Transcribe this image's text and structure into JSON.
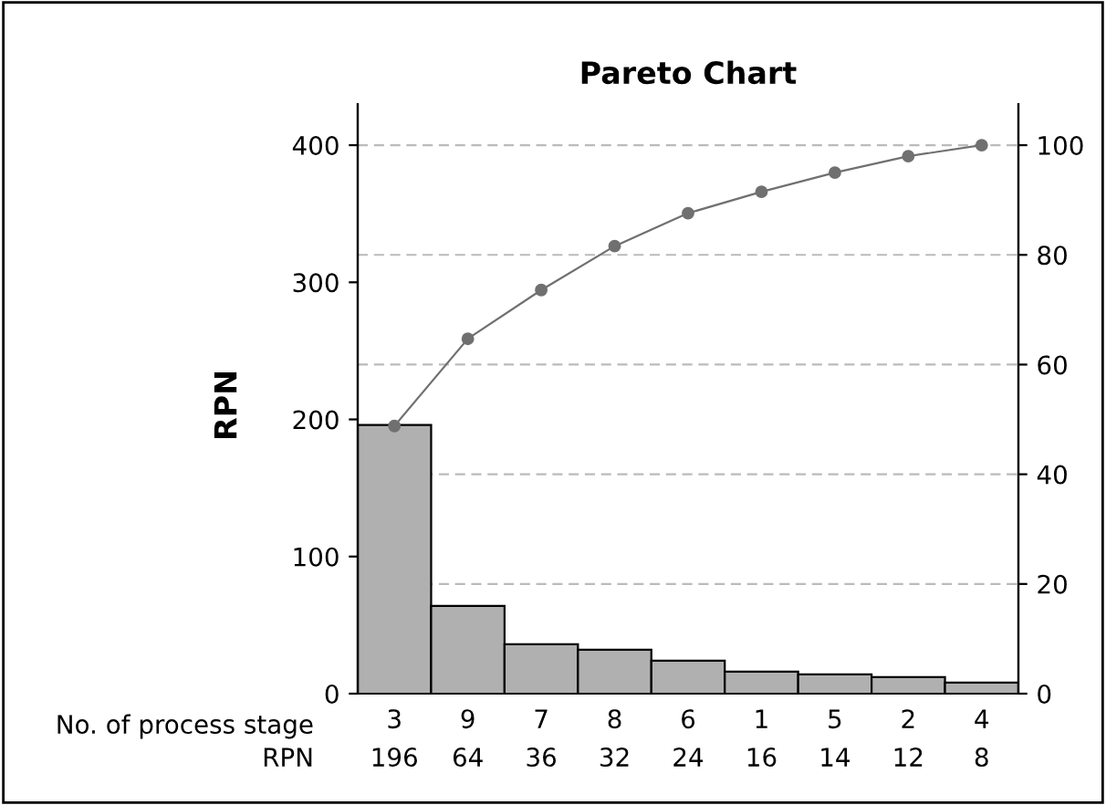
{
  "chart_data": {
    "type": "bar",
    "title": "Pareto Chart",
    "ylabel": "RPN",
    "xlabel": "No. of process stage",
    "annotations": [
      "RPN"
    ],
    "categories": [
      "3",
      "9",
      "7",
      "8",
      "6",
      "1",
      "5",
      "2",
      "4"
    ],
    "series": [
      {
        "color": "#b0b0b0",
        "values": [
          196,
          64,
          36,
          32,
          24,
          16,
          14,
          12,
          8
        ],
        "value_labels": [
          "196",
          "64",
          "36",
          "32",
          "24",
          "16",
          "14",
          "12",
          "8"
        ]
      },
      {
        "type": "line",
        "axis": "y2",
        "color": "#707070",
        "marker": "circle",
        "values": [
          48.8,
          64.7,
          73.6,
          81.6,
          87.6,
          91.5,
          95.0,
          98.0,
          100
        ]
      }
    ],
    "ylim": [
      0,
      430
    ],
    "yticks": [
      0,
      100,
      200,
      300,
      400
    ],
    "y2lim": [
      0,
      107.5
    ],
    "y2ticks": [
      0,
      20,
      40,
      60,
      80,
      100
    ],
    "ref_lines": [
      {
        "axis": "y2",
        "value": 20,
        "color": "#bbbbbb",
        "line_style": "dashed"
      },
      {
        "axis": "y2",
        "value": 40,
        "color": "#bbbbbb",
        "line_style": "dashed"
      },
      {
        "axis": "y2",
        "value": 60,
        "color": "#bbbbbb",
        "line_style": "dashed"
      },
      {
        "axis": "y2",
        "value": 80,
        "color": "#bbbbbb",
        "line_style": "dashed"
      },
      {
        "axis": "y2",
        "value": 100,
        "color": "#bbbbbb",
        "line_style": "dashed"
      }
    ]
  }
}
